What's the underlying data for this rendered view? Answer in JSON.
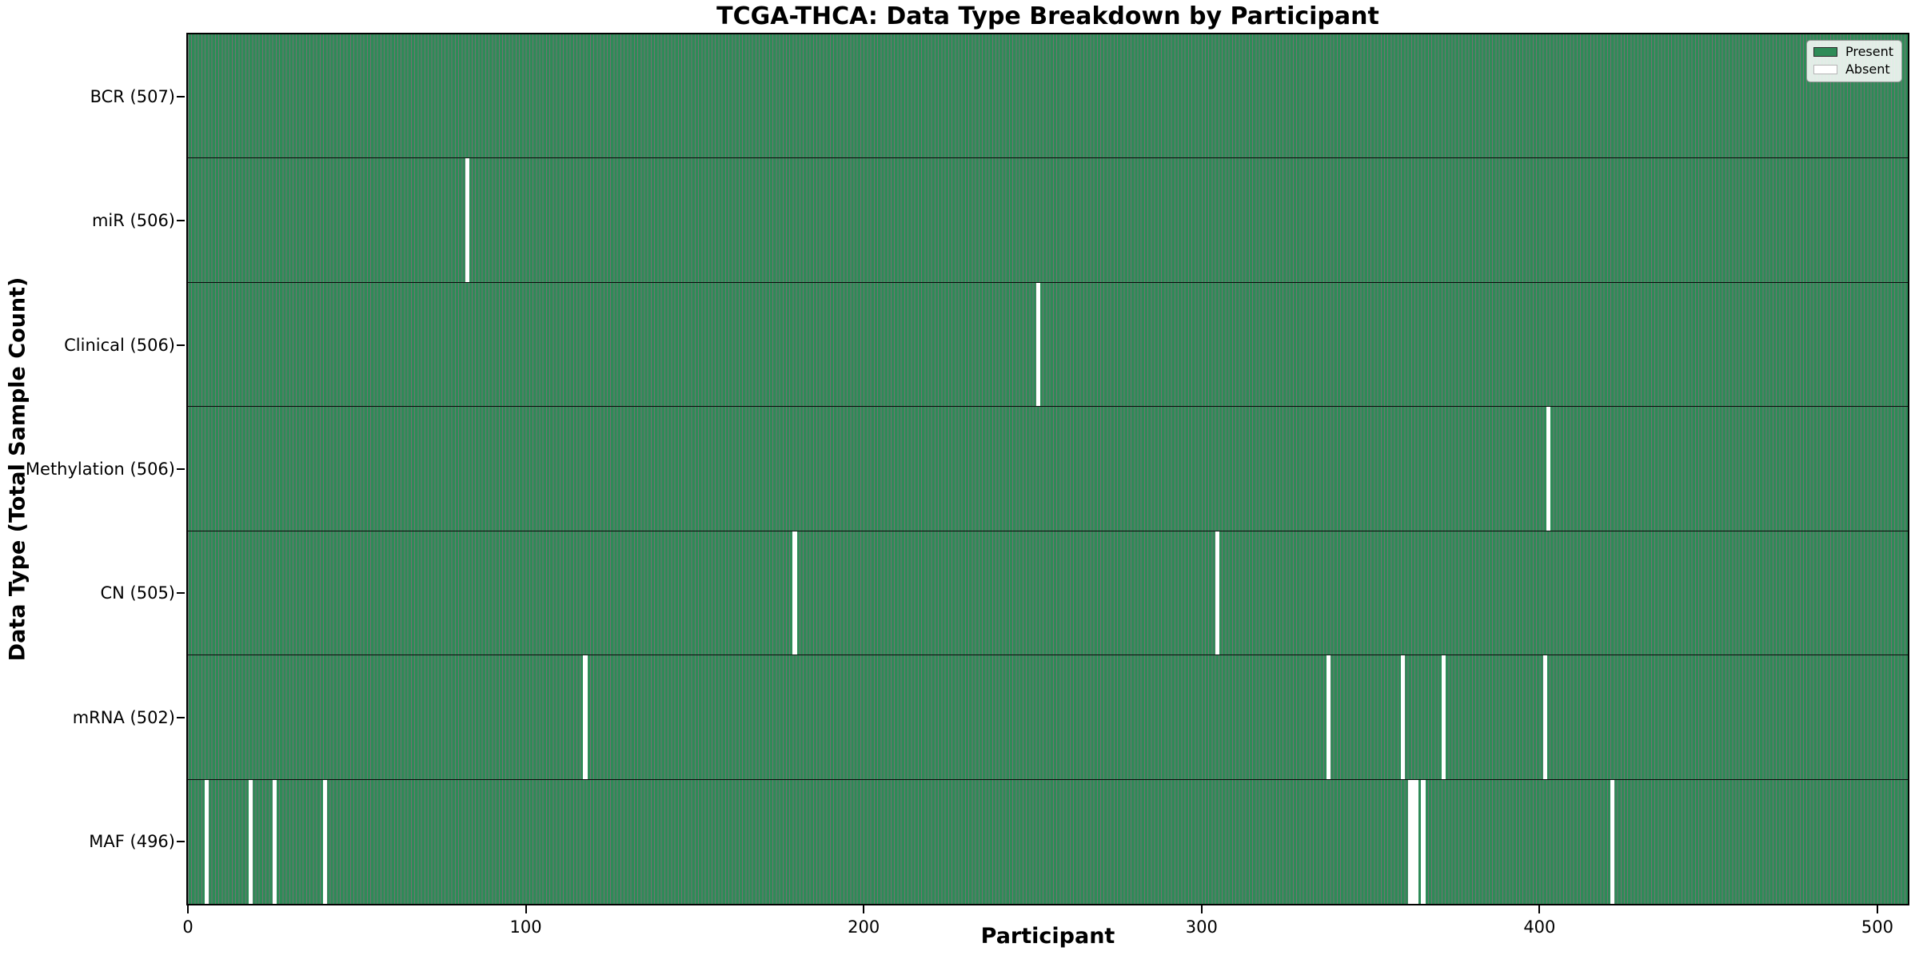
{
  "figure": {
    "title": "TCGA-THCA: Data Type Breakdown by Participant",
    "xlabel": "Participant",
    "ylabel": "Data Type (Total Sample Count)"
  },
  "legend": {
    "position": "upper-right",
    "items": [
      {
        "label": "Present",
        "color": "#2e8b57",
        "border": "#2a2a2a"
      },
      {
        "label": "Absent",
        "color": "#ffffff",
        "border": "#b5b5b5"
      }
    ]
  },
  "chart_data": {
    "type": "heatmap",
    "title": "TCGA-THCA: Data Type Breakdown by Participant",
    "xlabel": "Participant",
    "ylabel": "Data Type (Total Sample Count)",
    "x_ticks": [
      0,
      100,
      200,
      300,
      400,
      500
    ],
    "xlim": [
      0,
      509
    ],
    "n_participants": 509,
    "grid": false,
    "legend_entries": [
      "Present",
      "Absent"
    ],
    "legend_position": "upper right",
    "colors": {
      "present": "#2e8b57",
      "absent": "#ffffff",
      "bar_edge": "rgba(0,0,0,0.55)",
      "row_divider": "#0b0b0b"
    },
    "rows": [
      {
        "data_type": "BCR",
        "label": "BCR (507)",
        "total_samples": 507,
        "absent_segments": []
      },
      {
        "data_type": "miR",
        "label": "miR (506)",
        "total_samples": 506,
        "absent_segments": [
          {
            "start": 82,
            "width": 1
          }
        ]
      },
      {
        "data_type": "Clinical",
        "label": "Clinical (506)",
        "total_samples": 506,
        "absent_segments": [
          {
            "start": 251,
            "width": 1
          }
        ]
      },
      {
        "data_type": "Methylation",
        "label": "Methylation (506)",
        "total_samples": 506,
        "absent_segments": [
          {
            "start": 402,
            "width": 1
          }
        ]
      },
      {
        "data_type": "CN",
        "label": "CN (505)",
        "total_samples": 505,
        "absent_segments": [
          {
            "start": 179,
            "width": 1
          },
          {
            "start": 304,
            "width": 1
          }
        ]
      },
      {
        "data_type": "mRNA",
        "label": "mRNA (502)",
        "total_samples": 502,
        "absent_segments": [
          {
            "start": 117,
            "width": 1
          },
          {
            "start": 337,
            "width": 1
          },
          {
            "start": 359,
            "width": 1
          },
          {
            "start": 371,
            "width": 1
          },
          {
            "start": 401,
            "width": 1
          }
        ]
      },
      {
        "data_type": "MAF",
        "label": "MAF (496)",
        "total_samples": 496,
        "absent_segments": [
          {
            "start": 5,
            "width": 1
          },
          {
            "start": 18,
            "width": 1
          },
          {
            "start": 25,
            "width": 1
          },
          {
            "start": 40,
            "width": 1
          },
          {
            "start": 361,
            "width": 3
          },
          {
            "start": 365,
            "width": 1
          },
          {
            "start": 421,
            "width": 1
          }
        ]
      }
    ]
  }
}
